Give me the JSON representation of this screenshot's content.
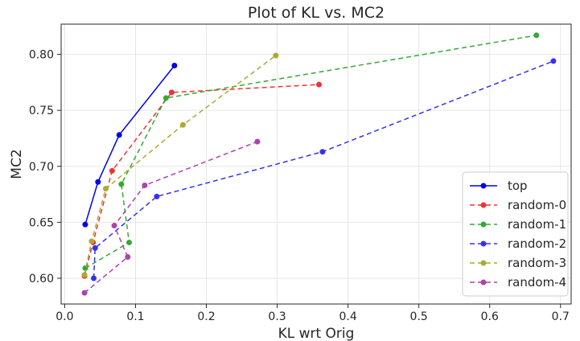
{
  "chart_data": {
    "type": "line",
    "title": "Plot of KL vs. MC2",
    "xlabel": "KL wrt Orig",
    "ylabel": "MC2",
    "xlim": [
      -0.005,
      0.715
    ],
    "ylim": [
      0.577,
      0.827
    ],
    "xticks": [
      0.0,
      0.1,
      0.2,
      0.3,
      0.4,
      0.5,
      0.6,
      0.7
    ],
    "xtick_labels": [
      "0.0",
      "0.1",
      "0.2",
      "0.3",
      "0.4",
      "0.5",
      "0.6",
      "0.7"
    ],
    "yticks": [
      0.6,
      0.65,
      0.7,
      0.75,
      0.8
    ],
    "ytick_labels": [
      "0.60",
      "0.65",
      "0.70",
      "0.75",
      "0.80"
    ],
    "grid": true,
    "legend_position": "lower-right",
    "series": [
      {
        "name": "top",
        "color": "#0000ee",
        "dashed": false,
        "points": [
          [
            0.029,
            0.648
          ],
          [
            0.047,
            0.686
          ],
          [
            0.077,
            0.728
          ],
          [
            0.155,
            0.79
          ]
        ]
      },
      {
        "name": "random-0",
        "color": "#ee3333",
        "dashed": true,
        "points": [
          [
            0.028,
            0.602
          ],
          [
            0.04,
            0.632
          ],
          [
            0.067,
            0.696
          ],
          [
            0.151,
            0.766
          ],
          [
            0.359,
            0.773
          ]
        ]
      },
      {
        "name": "random-1",
        "color": "#33aa33",
        "dashed": true,
        "points": [
          [
            0.029,
            0.609
          ],
          [
            0.091,
            0.632
          ],
          [
            0.08,
            0.684
          ],
          [
            0.143,
            0.761
          ],
          [
            0.666,
            0.817
          ]
        ]
      },
      {
        "name": "random-2",
        "color": "#3333ee",
        "dashed": true,
        "points": [
          [
            0.041,
            0.6
          ],
          [
            0.043,
            0.627
          ],
          [
            0.13,
            0.673
          ],
          [
            0.364,
            0.713
          ],
          [
            0.69,
            0.794
          ]
        ]
      },
      {
        "name": "random-3",
        "color": "#aaaa33",
        "dashed": true,
        "points": [
          [
            0.028,
            0.603
          ],
          [
            0.038,
            0.633
          ],
          [
            0.058,
            0.68
          ],
          [
            0.167,
            0.737
          ],
          [
            0.298,
            0.799
          ]
        ]
      },
      {
        "name": "random-4",
        "color": "#aa44aa",
        "dashed": true,
        "points": [
          [
            0.028,
            0.587
          ],
          [
            0.089,
            0.619
          ],
          [
            0.07,
            0.647
          ],
          [
            0.113,
            0.683
          ],
          [
            0.272,
            0.722
          ]
        ]
      }
    ]
  }
}
